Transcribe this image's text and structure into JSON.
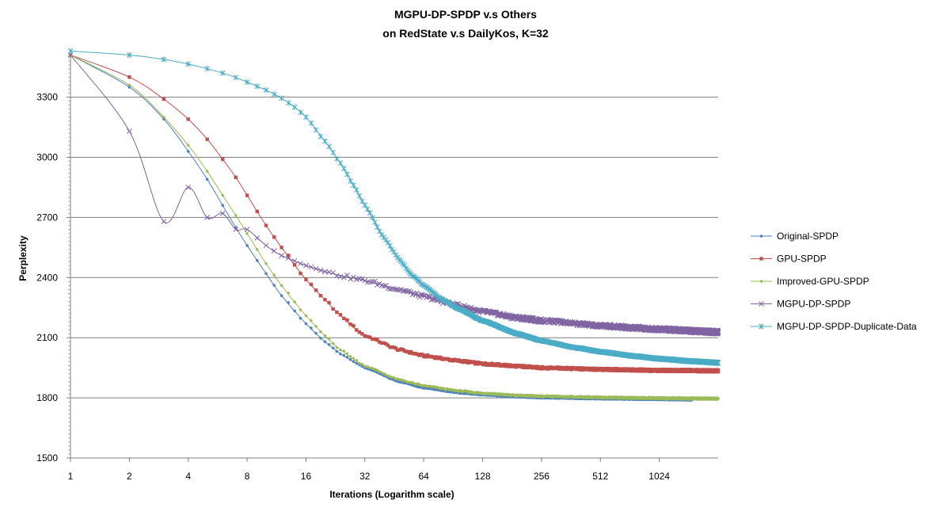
{
  "chart_data": {
    "type": "line",
    "title": "MGPU-DP-SPDP  v.s  Others",
    "subtitle": "on RedState v.s DailyKos, K=32",
    "xlabel": "Iterations (Logarithm scale)",
    "ylabel": "Perplexity",
    "x_scale": "log2",
    "xlim": [
      1,
      2048
    ],
    "ylim": [
      1500,
      3500
    ],
    "x_ticks": [
      1,
      2,
      4,
      8,
      16,
      32,
      64,
      128,
      256,
      512,
      1024
    ],
    "y_ticks": [
      1500,
      1800,
      2100,
      2400,
      2700,
      3000,
      3300
    ],
    "grid": "horizontal",
    "legend_position": "right",
    "series": [
      {
        "name": "Original-SPDP",
        "color": "#4f81bd",
        "marker": "dot",
        "x": [
          1,
          2,
          3,
          4,
          5,
          6,
          7,
          8,
          10,
          12,
          16,
          20,
          24,
          32,
          48,
          64,
          96,
          128,
          192,
          256,
          512,
          1024,
          1500
        ],
        "y": [
          3510,
          3350,
          3190,
          3030,
          2890,
          2760,
          2650,
          2560,
          2420,
          2310,
          2170,
          2080,
          2020,
          1950,
          1880,
          1850,
          1825,
          1815,
          1805,
          1800,
          1795,
          1792,
          1790
        ]
      },
      {
        "name": "GPU-SPDP",
        "color": "#c0504d",
        "marker": "square",
        "x": [
          1,
          2,
          3,
          4,
          5,
          6,
          7,
          8,
          10,
          12,
          16,
          20,
          24,
          32,
          48,
          64,
          96,
          128,
          192,
          256,
          512,
          1024,
          2048
        ],
        "y": [
          3510,
          3400,
          3290,
          3190,
          3090,
          2990,
          2900,
          2810,
          2660,
          2550,
          2390,
          2290,
          2210,
          2110,
          2040,
          2010,
          1985,
          1970,
          1958,
          1950,
          1942,
          1937,
          1935
        ]
      },
      {
        "name": "Improved-GPU-SPDP",
        "color": "#9bbb59",
        "marker": "diamond",
        "x": [
          1,
          2,
          3,
          4,
          5,
          6,
          7,
          8,
          10,
          12,
          16,
          20,
          24,
          32,
          48,
          64,
          96,
          128,
          192,
          256,
          512,
          1024,
          2048
        ],
        "y": [
          3510,
          3360,
          3200,
          3060,
          2930,
          2810,
          2710,
          2620,
          2470,
          2360,
          2210,
          2110,
          2040,
          1960,
          1890,
          1860,
          1835,
          1823,
          1812,
          1808,
          1802,
          1798,
          1796
        ]
      },
      {
        "name": "MGPU-DP-SPDP",
        "color": "#8064a2",
        "marker": "x",
        "x": [
          1,
          2,
          3,
          4,
          5,
          6,
          7,
          8,
          10,
          12,
          16,
          20,
          24,
          32,
          48,
          64,
          96,
          128,
          192,
          256,
          512,
          1024,
          2048
        ],
        "y": [
          3510,
          3130,
          2680,
          2850,
          2700,
          2720,
          2640,
          2640,
          2560,
          2510,
          2460,
          2430,
          2410,
          2385,
          2340,
          2305,
          2260,
          2230,
          2200,
          2185,
          2160,
          2142,
          2128
        ]
      },
      {
        "name": "MGPU-DP-SPDP-Duplicate-Data",
        "color": "#4bacc6",
        "marker": "asterisk",
        "x": [
          1,
          2,
          3,
          4,
          5,
          6,
          7,
          8,
          10,
          12,
          14,
          16,
          20,
          24,
          28,
          32,
          40,
          48,
          56,
          64,
          80,
          96,
          128,
          192,
          256,
          384,
          512,
          768,
          1024,
          1536,
          2048
        ],
        "y": [
          3530,
          3510,
          3488,
          3465,
          3442,
          3420,
          3398,
          3375,
          3335,
          3295,
          3250,
          3200,
          3080,
          2970,
          2860,
          2760,
          2600,
          2490,
          2410,
          2360,
          2290,
          2245,
          2185,
          2120,
          2085,
          2050,
          2030,
          2008,
          1995,
          1982,
          1975
        ]
      }
    ]
  }
}
